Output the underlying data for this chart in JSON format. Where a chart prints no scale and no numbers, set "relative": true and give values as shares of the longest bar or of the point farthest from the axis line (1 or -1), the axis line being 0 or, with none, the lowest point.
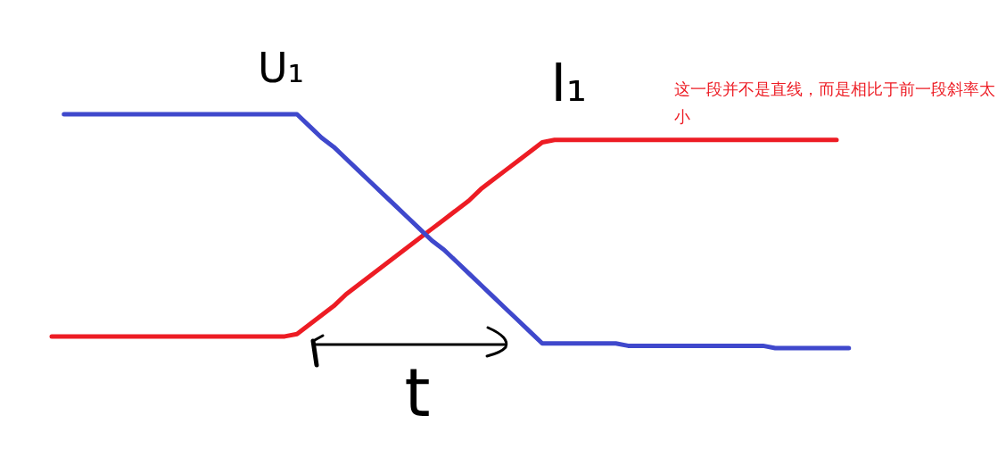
{
  "chart_data": {
    "type": "line",
    "relative": true,
    "categories": [
      null,
      null,
      null,
      null,
      null,
      null,
      null,
      null,
      null,
      null,
      null,
      null,
      null,
      null,
      null,
      null,
      null,
      null,
      null,
      null,
      null,
      null,
      null,
      null,
      null,
      null,
      null,
      null,
      null,
      null,
      null,
      null,
      null,
      null,
      null,
      null,
      null,
      null,
      null,
      null,
      null,
      null,
      null,
      null,
      null,
      null,
      null,
      null,
      null,
      null,
      null,
      null,
      null,
      null,
      null,
      null,
      null,
      null,
      null,
      null,
      null,
      null,
      null,
      null,
      null,
      null
    ],
    "series": [
      {
        "name": "I₁",
        "color": "#ed1c24",
        "values": [
          0.05,
          0.05,
          0.05,
          0.05,
          0.05,
          0.05,
          0.05,
          0.05,
          0.05,
          0.05,
          0.05,
          0.05,
          0.05,
          0.05,
          0.05,
          0.05,
          0.05,
          0.05,
          0.05,
          0.05,
          0.06,
          0.1,
          0.14,
          0.18,
          0.23,
          0.27,
          0.31,
          0.35,
          0.39,
          0.43,
          0.47,
          0.51,
          0.55,
          0.59,
          0.63,
          0.68,
          0.72,
          0.76,
          0.8,
          0.84,
          0.88,
          0.89,
          0.89,
          0.89,
          0.89,
          0.89,
          0.89,
          0.89,
          0.89,
          0.89,
          0.89,
          0.89,
          0.89,
          0.89,
          0.89,
          0.89,
          0.89,
          0.89,
          0.89,
          0.89,
          0.89,
          0.89,
          0.89,
          0.89,
          0.89,
          null
        ]
      },
      {
        "name": "U₁",
        "color": "#3f48cc",
        "values": [
          null,
          1,
          1,
          1,
          1,
          1,
          1,
          1,
          1,
          1,
          1,
          1,
          1,
          1,
          1,
          1,
          1,
          1,
          1,
          1,
          1,
          0.95,
          0.9,
          0.86,
          0.81,
          0.76,
          0.71,
          0.66,
          0.61,
          0.56,
          0.51,
          0.46,
          0.42,
          0.37,
          0.32,
          0.27,
          0.22,
          0.17,
          0.12,
          0.07,
          0.02,
          0.02,
          0.02,
          0.02,
          0.02,
          0.02,
          0.02,
          0.01,
          0.01,
          0.01,
          0.01,
          0.01,
          0.01,
          0.01,
          0.01,
          0.01,
          0.01,
          0.01,
          0.01,
          0,
          0,
          0,
          0,
          0,
          0,
          0
        ]
      }
    ],
    "annotations": [
      "这一段并不是直线，而是相比于前一段斜率太小",
      "t"
    ]
  }
}
